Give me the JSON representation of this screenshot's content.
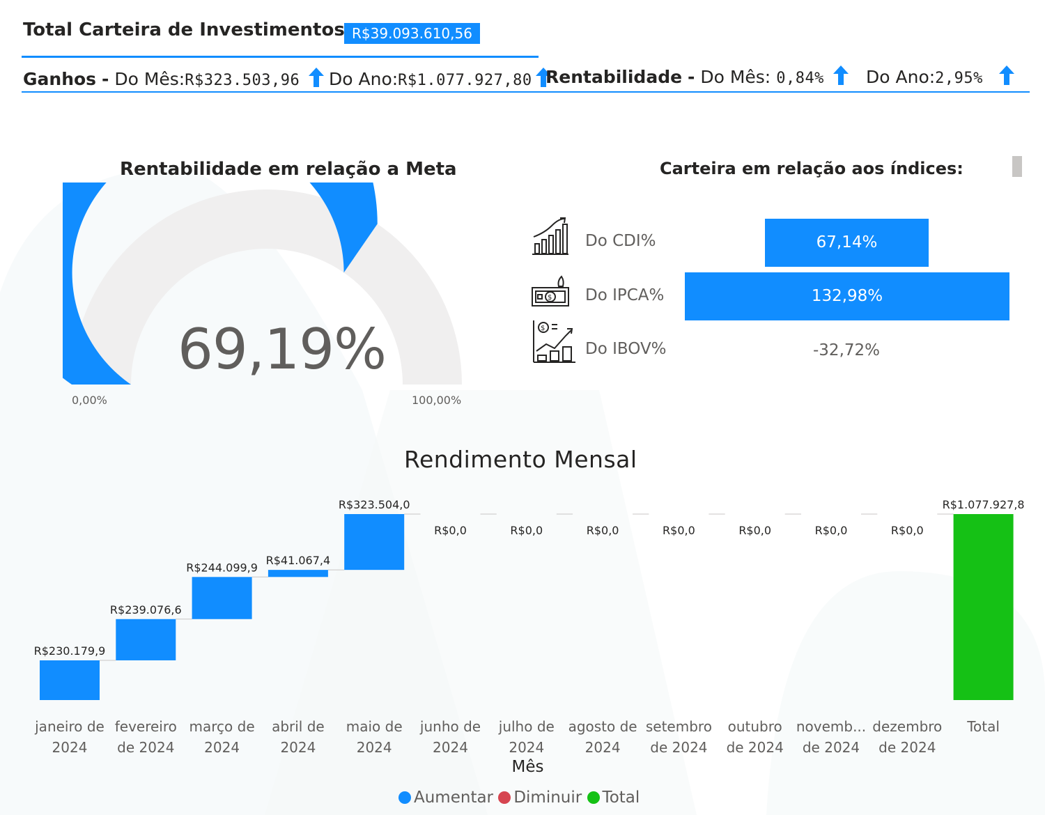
{
  "header": {
    "title": "Total Carteira de Investimentos:",
    "total_value": "R$39.093.610,56",
    "ganhos_label": "Ganhos",
    "dash": "-",
    "mes_label": "Do Mês:",
    "ganhos_mes": "R$323.503,96",
    "ano_label": "Do Ano:",
    "ganhos_ano": "R$1.077.927,80",
    "rent_label": "Rentabilidade",
    "rent_mes_label": "Do Mês:",
    "rent_mes": "0,84%",
    "rent_ano_label": "Do Ano:",
    "rent_ano": "2,95%",
    "arrow_icon": "up-arrow-icon",
    "accent": "#118DFF"
  },
  "gauge": {
    "title": "Rentabilidade em relação a Meta",
    "value_text": "69,19%",
    "value": 0.6919,
    "min_label": "0,00%",
    "max_label": "100,00%",
    "fill_color": "#118DFF",
    "track_color": "#F0EFEF"
  },
  "indices": {
    "title": "Carteira em relação aos índices:",
    "items": [
      {
        "label": "Do CDI%",
        "value_text": "67,14%",
        "value": 67.14,
        "icon": "bar-growth-chart-icon"
      },
      {
        "label": "Do IPCA%",
        "value_text": "132,98%",
        "value": 132.98,
        "icon": "money-inflation-icon"
      },
      {
        "label": "Do IBOV%",
        "value_text": "-32,72%",
        "value": -32.72,
        "icon": "coin-stock-chart-icon"
      }
    ]
  },
  "chart_data": {
    "type": "waterfall",
    "title": "Rendimento Mensal",
    "xlabel": "Mês",
    "categories": [
      [
        "janeiro de",
        "2024"
      ],
      [
        "fevereiro",
        "de 2024"
      ],
      [
        "março de",
        "2024"
      ],
      [
        "abril de",
        "2024"
      ],
      [
        "maio de",
        "2024"
      ],
      [
        "junho de",
        "2024"
      ],
      [
        "julho de",
        "2024"
      ],
      [
        "agosto de",
        "2024"
      ],
      [
        "setembro",
        "de 2024"
      ],
      [
        "outubro",
        "de 2024"
      ],
      [
        "novemb...",
        "de 2024"
      ],
      [
        "dezembro",
        "de 2024"
      ],
      [
        "Total",
        ""
      ]
    ],
    "values": [
      230179.9,
      239076.6,
      244099.9,
      41067.4,
      323504.0,
      0,
      0,
      0,
      0,
      0,
      0,
      0,
      1077927.8
    ],
    "data_labels": [
      "R$230.179,9",
      "R$239.076,6",
      "R$244.099,9",
      "R$41.067,4",
      "R$323.504,0",
      "R$0,0",
      "R$0,0",
      "R$0,0",
      "R$0,0",
      "R$0,0",
      "R$0,0",
      "R$0,0",
      "R$1.077.927,8"
    ],
    "legend": [
      {
        "name": "Aumentar",
        "color": "#118DFF"
      },
      {
        "name": "Diminuir",
        "color": "#D64550"
      },
      {
        "name": "Total",
        "color": "#15C115"
      }
    ]
  }
}
